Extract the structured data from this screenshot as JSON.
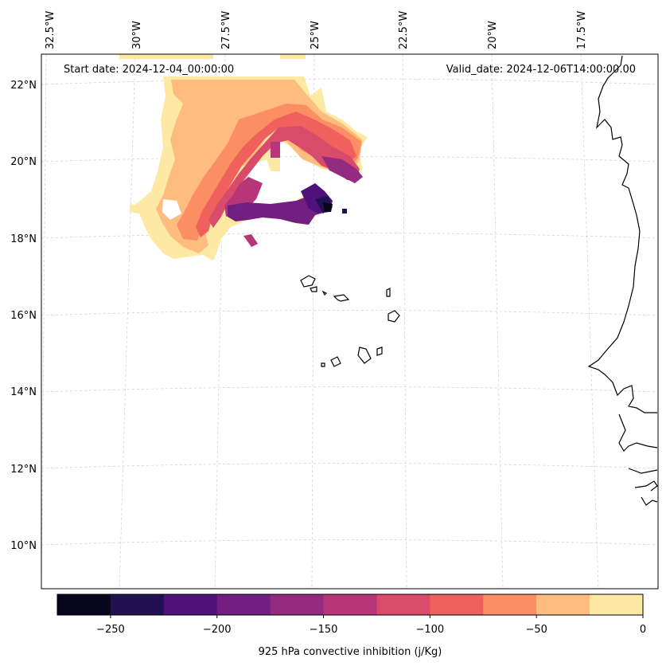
{
  "header": {
    "start_date": "Start date: 2024-12-04_00:00:00",
    "valid_date": "Valid_date: 2024-12-06T14:00:00.00"
  },
  "longitude_labels": [
    "32.5°W",
    "30°W",
    "27.5°W",
    "25°W",
    "22.5°W",
    "20°W",
    "17.5°W"
  ],
  "latitude_labels": [
    "22°N",
    "20°N",
    "18°N",
    "16°N",
    "14°N",
    "12°N",
    "10°N"
  ],
  "colorbar": {
    "label": "925 hPa convective inhibition (j/Kg)",
    "ticks": [
      "−250",
      "−200",
      "−150",
      "−100",
      "−50",
      "0"
    ],
    "levels": [
      -275,
      -250,
      -225,
      -200,
      -175,
      -150,
      -125,
      -100,
      -75,
      -50,
      -25,
      0
    ],
    "colors": [
      "#07061c",
      "#221150",
      "#4f127b",
      "#721f81",
      "#932b80",
      "#b63679",
      "#d84b6a",
      "#f0605d",
      "#fc8e63",
      "#febc7f",
      "#fde9a4"
    ]
  },
  "map_features": {
    "coastline_color": "#000000",
    "gridline_color": "#cccccc",
    "cin_field": "925 hPa convective inhibition"
  }
}
